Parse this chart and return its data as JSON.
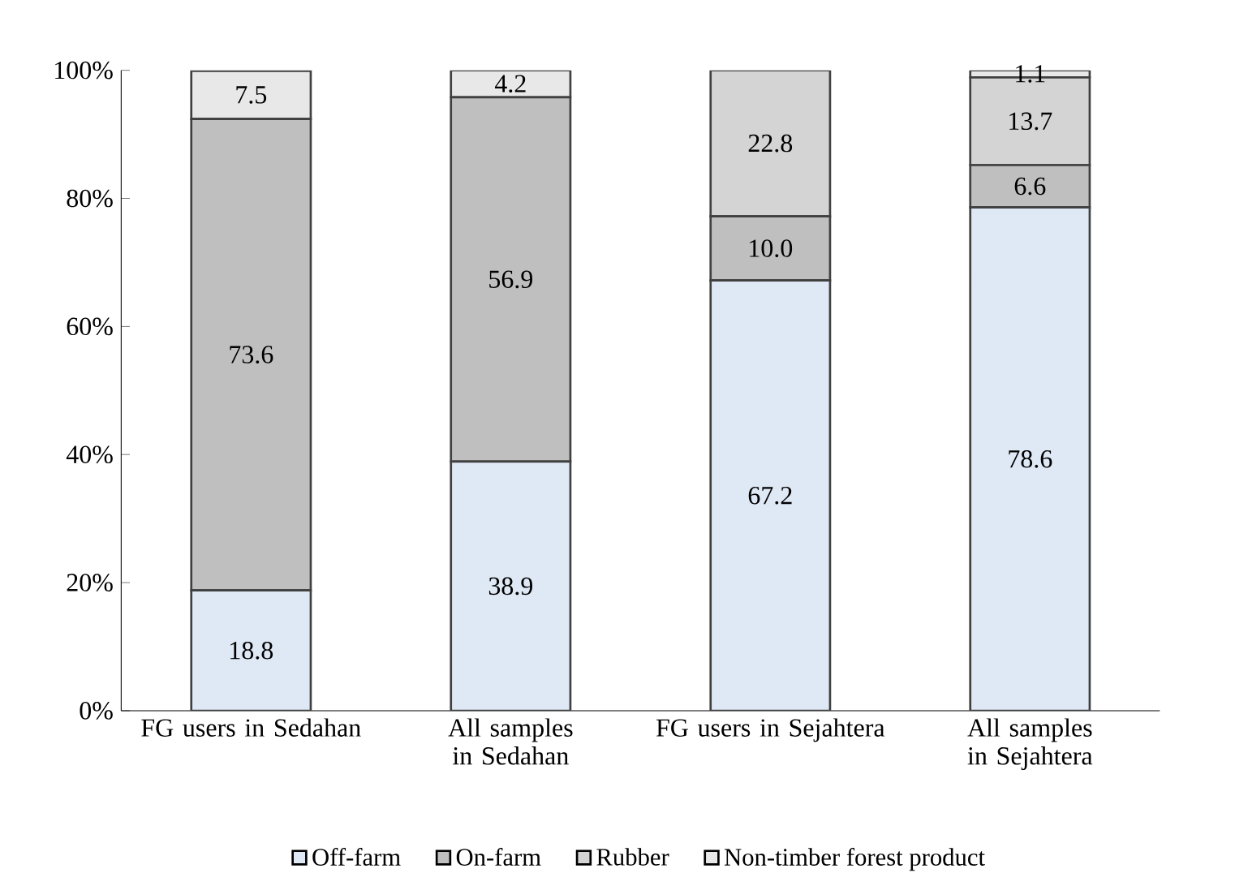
{
  "chart_data": {
    "type": "bar",
    "stacked": true,
    "categories": [
      "FG users in Sedahan",
      "All samples in Sedahan",
      "FG users in Sejahtera",
      "All samples in Sejahtera"
    ],
    "series": [
      {
        "name": "Off-farm",
        "color": "#dfe8f5",
        "values": [
          18.8,
          38.9,
          67.2,
          78.6
        ],
        "value_labels": [
          "18.8",
          "38.9",
          "67.2",
          "78.6"
        ]
      },
      {
        "name": "On-farm",
        "color": "#bfbfbf",
        "values": [
          73.6,
          56.9,
          10.0,
          6.6
        ],
        "value_labels": [
          "73.6",
          "56.9",
          "10.0",
          "6.6"
        ]
      },
      {
        "name": "Rubber",
        "color": "#d4d4d4",
        "values": [
          0,
          0,
          22.8,
          13.7
        ],
        "value_labels": [
          null,
          null,
          "22.8",
          "13.7"
        ]
      },
      {
        "name": "Non-timber forest product",
        "color": "#e8e8e8",
        "values": [
          7.5,
          4.2,
          0,
          1.1
        ],
        "value_labels": [
          "7.5",
          "4.2",
          null,
          "1.1"
        ]
      }
    ],
    "ylim": [
      0,
      100
    ],
    "yticks": [
      {
        "value": 0,
        "label": "0%"
      },
      {
        "value": 20,
        "label": "20%"
      },
      {
        "value": 40,
        "label": "40%"
      },
      {
        "value": 60,
        "label": "60%"
      },
      {
        "value": 80,
        "label": "80%"
      },
      {
        "value": 100,
        "label": "100%"
      }
    ],
    "legend": "bottom",
    "grid": false
  }
}
